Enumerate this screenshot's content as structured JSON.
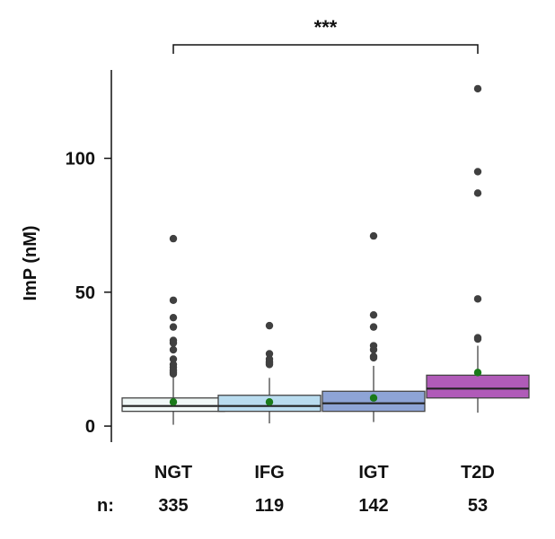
{
  "chart_data": {
    "type": "box",
    "ylabel": "ImP (nM)",
    "ylim": [
      -6,
      133
    ],
    "yticks": [
      0,
      50,
      100
    ],
    "n_label": "n:",
    "significance": {
      "from": "NGT",
      "to": "T2D",
      "label": "***"
    },
    "groups": [
      {
        "name": "NGT",
        "n": "335",
        "color": "#f0f8f7",
        "whisker_low": 0.5,
        "q1": 5.5,
        "median": 7.5,
        "q3": 10.5,
        "whisker_high": 19,
        "mean": 9,
        "outliers": [
          70,
          47,
          40.5,
          37,
          32,
          31,
          28.5,
          25,
          23,
          22,
          21,
          20.5,
          20,
          19.5
        ]
      },
      {
        "name": "IFG",
        "n": "119",
        "color": "#b9dcef",
        "whisker_low": 1,
        "q1": 5.5,
        "median": 7.5,
        "q3": 11.5,
        "whisker_high": 18,
        "mean": 9,
        "outliers": [
          37.5,
          27,
          25,
          24,
          23.5,
          23
        ]
      },
      {
        "name": "IGT",
        "n": "142",
        "color": "#8ea4d6",
        "whisker_low": 1.5,
        "q1": 5.5,
        "median": 8.5,
        "q3": 13,
        "whisker_high": 22.5,
        "mean": 10.5,
        "outliers": [
          71,
          41.5,
          37,
          30,
          28.5,
          26,
          25.5
        ]
      },
      {
        "name": "T2D",
        "n": "53",
        "color": "#b05bb8",
        "whisker_low": 5,
        "q1": 10.5,
        "median": 14,
        "q3": 19,
        "whisker_high": 30,
        "mean": 20,
        "outliers": [
          126,
          95,
          87,
          47.5,
          33,
          32.5
        ]
      }
    ]
  },
  "colors": {
    "box_stroke": "#444444",
    "median_line": "#222222",
    "outlier": "#404040",
    "mean_marker": "#1a7a1a",
    "axis": "#111111"
  }
}
